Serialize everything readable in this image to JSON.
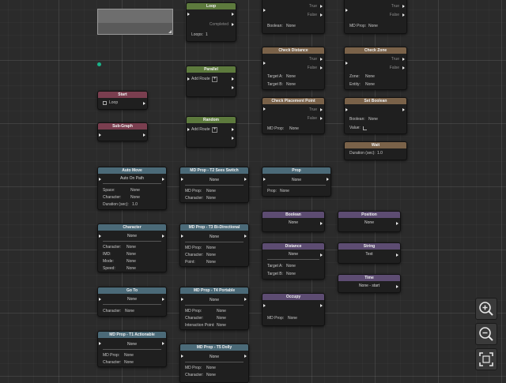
{
  "nodes": {
    "loop": {
      "title": "Loop",
      "completed": "Completed",
      "loops_label": "Loops:",
      "loops_value": "1"
    },
    "parallel": {
      "title": "Parallel",
      "add_route": "Add Route"
    },
    "random": {
      "title": "Random",
      "add_route": "Add Route"
    },
    "start": {
      "title": "Start",
      "loop": "Loop"
    },
    "subgraph": {
      "title": "Sub-Graph"
    },
    "top1": {
      "true": "True",
      "false": "False",
      "label": "Boolean:",
      "value": "None"
    },
    "top2": {
      "true": "True",
      "false": "False",
      "label": "MD Prop:",
      "value": "None"
    },
    "check_distance": {
      "title": "Check Distance",
      "true": "True",
      "false": "False",
      "target_a": "Target A:",
      "target_a_val": "None",
      "target_b": "Target B:",
      "target_b_val": "None"
    },
    "check_zone": {
      "title": "Check Zone",
      "true": "True",
      "false": "False",
      "zone": "Zone:",
      "zone_val": "None",
      "entity": "Entity:",
      "entity_val": "None"
    },
    "check_placement": {
      "title": "Check Placement Point",
      "true": "True",
      "false": "False",
      "label": "MD Prop:",
      "value": "None"
    },
    "set_boolean": {
      "title": "Set Boolean",
      "boolean": "Boolean:",
      "boolean_val": "None",
      "value_label": "Value:"
    },
    "wait": {
      "title": "Wait",
      "label": "Duration (sec):",
      "value": "1.0"
    },
    "auto_move": {
      "title": "Auto Move",
      "mode": "Auto On Path",
      "space": "Space:",
      "space_val": "None",
      "character": "Character:",
      "character_val": "None",
      "duration": "Duration (sec):",
      "duration_val": "1.0"
    },
    "t2_seesaw": {
      "title": "MD Prop - T2 Sees Switch",
      "selector": "None",
      "mdprop": "MD Prop:",
      "mdprop_val": "None",
      "character": "Character:",
      "character_val": "None"
    },
    "prop": {
      "title": "Prop",
      "selector": "None",
      "label": "Prop:",
      "value": "None"
    },
    "character": {
      "title": "Character",
      "selector": "None",
      "character": "Character:",
      "character_val": "None",
      "imd": "IMD:",
      "imd_val": "None",
      "mode": "Mode:",
      "mode_val": "None",
      "speed": "Speed:",
      "speed_val": "None"
    },
    "t3_bidir": {
      "title": "MD Prop - T3 Bi-Directional",
      "selector": "None",
      "mdprop": "MD Prop:",
      "mdprop_val": "None",
      "character": "Character:",
      "character_val": "None",
      "point": "Point:",
      "point_val": "None"
    },
    "boolean": {
      "title": "Boolean",
      "selector": "None"
    },
    "position": {
      "title": "Position",
      "selector": "None"
    },
    "distance": {
      "title": "Distance",
      "selector": "None",
      "target_a": "Target A:",
      "target_a_val": "None",
      "target_b": "Target B:",
      "target_b_val": "None"
    },
    "string": {
      "title": "String",
      "value": "Text"
    },
    "time": {
      "title": "Time",
      "value": "None - start"
    },
    "goto": {
      "title": "Go To",
      "selector": "None",
      "character": "Character:",
      "character_val": "None"
    },
    "t4_portable": {
      "title": "MD Prop - T4 Portable",
      "selector": "None",
      "mdprop": "MD Prop:",
      "mdprop_val": "None",
      "character": "Character:",
      "character_val": "None",
      "ipoint": "Interaction Point:",
      "ipoint_val": "None"
    },
    "occupy": {
      "title": "Occupy",
      "label": "MD Prop:",
      "value": "None"
    },
    "t1_actionable": {
      "title": "MD Prop - T1 Actionable",
      "selector": "None",
      "mdprop": "MD Prop:",
      "mdprop_val": "None",
      "character": "Character:",
      "character_val": "None"
    },
    "t5_dolly": {
      "title": "MD Prop - T5 Dolly",
      "selector": "None",
      "mdprop": "MD Prop:",
      "mdprop_val": "None",
      "character": "Character:",
      "character_val": "None"
    }
  },
  "controls": {
    "zoom_in": "zoom-in-icon",
    "zoom_out": "zoom-out-icon",
    "fit": "fit-view-icon"
  }
}
